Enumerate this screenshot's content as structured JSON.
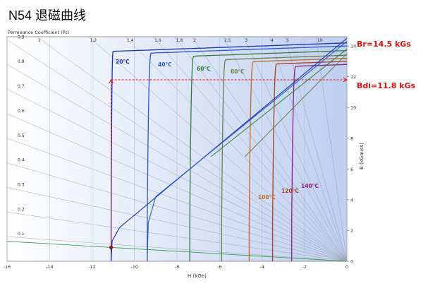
{
  "title": "N54 退磁曲线",
  "chart_data": {
    "type": "line",
    "xlabel": "H (kOe)",
    "ylabel": "B (kGauss)",
    "pc_label": "Permeance Coefficient (Pc)",
    "xlim": [
      -16,
      0
    ],
    "ylim": [
      0,
      14.6
    ],
    "x_ticks": [
      "-16",
      "-14",
      "-12",
      "-10",
      "-8",
      "-6",
      "-4",
      "-2",
      "0"
    ],
    "y_ticks": [
      "0",
      "2",
      "4",
      "6",
      "8",
      "10",
      "12",
      "14"
    ],
    "pc_top_labels": [
      "1",
      "1.2",
      "1.4",
      "1.6",
      "1.8",
      "2",
      "2.5",
      "3",
      "4",
      "5",
      "10"
    ],
    "pc_left_labels": [
      "0.1",
      "0.2",
      "0.3",
      "0.4",
      "0.5",
      "0.6",
      "0.7",
      "0.8",
      "0.9"
    ],
    "series": [
      {
        "name": "20°C",
        "color": "#1a34b0",
        "br": 14.2,
        "hcj": -11.1,
        "knee": -11.0
      },
      {
        "name": "40°C",
        "color": "#2a58c8",
        "br": 14.0,
        "hcj": -9.4,
        "knee": -9.2
      },
      {
        "name": "60°C",
        "color": "#2f7f3b",
        "br": 13.7,
        "hcj": -7.4,
        "knee": -7.2
      },
      {
        "name": "80°C",
        "color": "#66804a",
        "br": 13.4,
        "hcj": -5.9,
        "knee": -5.7
      },
      {
        "name": "100°C",
        "color": "#c26a28",
        "br": 13.2,
        "hcj": -4.6,
        "knee": -4.4
      },
      {
        "name": "120°C",
        "color": "#a8401f",
        "br": 13.0,
        "hcj": -3.5,
        "knee": -3.3
      },
      {
        "name": "140°C",
        "color": "#8a2080",
        "br": 12.8,
        "hcj": -2.6,
        "knee": -2.4
      }
    ],
    "normal_curves": [
      {
        "color": "#1a34b0",
        "br": 14.5,
        "x0": -11.1,
        "y0": 2.2
      },
      {
        "color": "#2a58c8",
        "br": 14.3,
        "x0": -9.4,
        "y0": 4.2
      }
    ],
    "load_line": {
      "color": "#2a9a3a",
      "x0": -16,
      "y0": 1.3,
      "x1": 0,
      "y1": 0
    },
    "operating_point": {
      "x": -11.1,
      "y": 0.9
    },
    "br_annotation": "Br=14.5 kGs",
    "bdi_annotation": "Bdi=11.8 kGs",
    "bdi_value": 11.8,
    "annotation_color": "#e01010"
  }
}
